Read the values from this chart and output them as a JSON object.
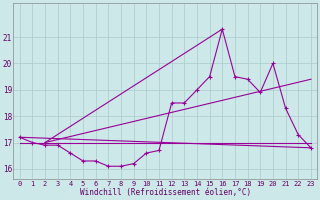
{
  "hours": [
    0,
    1,
    2,
    3,
    4,
    5,
    6,
    7,
    8,
    9,
    10,
    11,
    12,
    13,
    14,
    15,
    16,
    17,
    18,
    19,
    20,
    21,
    22,
    23
  ],
  "windchill": [
    17.2,
    17.0,
    16.9,
    16.9,
    16.6,
    16.3,
    16.3,
    16.1,
    16.1,
    16.2,
    16.6,
    16.7,
    18.5,
    18.5,
    19.0,
    19.5,
    21.3,
    19.5,
    19.4,
    18.9,
    20.0,
    18.3,
    17.3,
    16.8
  ],
  "flat_line_y": 17.0,
  "diag1": {
    "x": [
      0,
      23
    ],
    "y": [
      17.2,
      16.8
    ]
  },
  "diag2": {
    "x": [
      2,
      16
    ],
    "y": [
      17.0,
      21.3
    ]
  },
  "diag3": {
    "x": [
      2,
      23
    ],
    "y": [
      17.0,
      19.4
    ]
  },
  "ylim_min": 15.6,
  "ylim_max": 22.3,
  "xlim_min": -0.5,
  "xlim_max": 23.5,
  "yticks": [
    16,
    17,
    18,
    19,
    20,
    21
  ],
  "bg_color": "#cce8e8",
  "line_color": "#990099",
  "grid_color": "#aacccc",
  "grid_color2": "#bbdddd",
  "xlabel": "Windchill (Refroidissement éolien,°C)",
  "xlabel_color": "#660066",
  "tick_color": "#660066",
  "spine_color": "#888888"
}
